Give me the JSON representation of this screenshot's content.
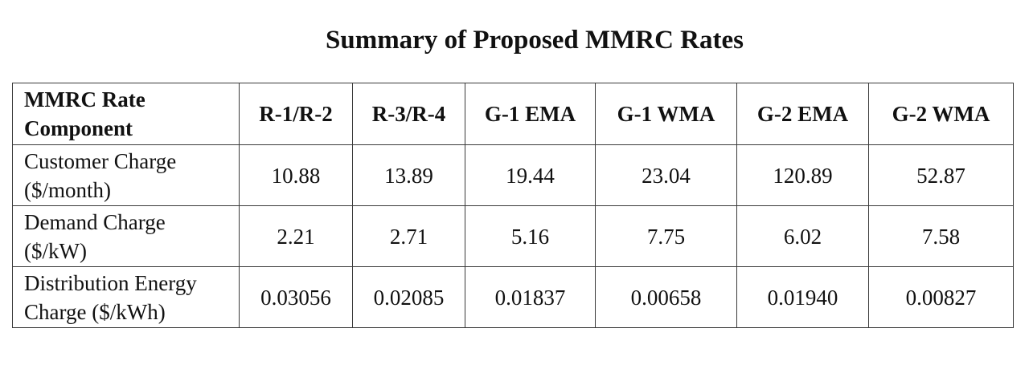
{
  "title": "Summary of Proposed MMRC Rates",
  "table": {
    "headers": [
      "MMRC Rate Component",
      "R-1/R-2",
      "R-3/R-4",
      "G-1 EMA",
      "G-1 WMA",
      "G-2 EMA",
      "G-2 WMA"
    ],
    "rows": [
      {
        "label": "Customer Charge ($/month)",
        "values": [
          "10.88",
          "13.89",
          "19.44",
          "23.04",
          "120.89",
          "52.87"
        ]
      },
      {
        "label": "Demand Charge ($/kW)",
        "values": [
          "2.21",
          "2.71",
          "5.16",
          "7.75",
          "6.02",
          "7.58"
        ]
      },
      {
        "label": "Distribution Energy Charge ($/kWh)",
        "values": [
          "0.03056",
          "0.02085",
          "0.01837",
          "0.00658",
          "0.01940",
          "0.00827"
        ]
      }
    ]
  }
}
